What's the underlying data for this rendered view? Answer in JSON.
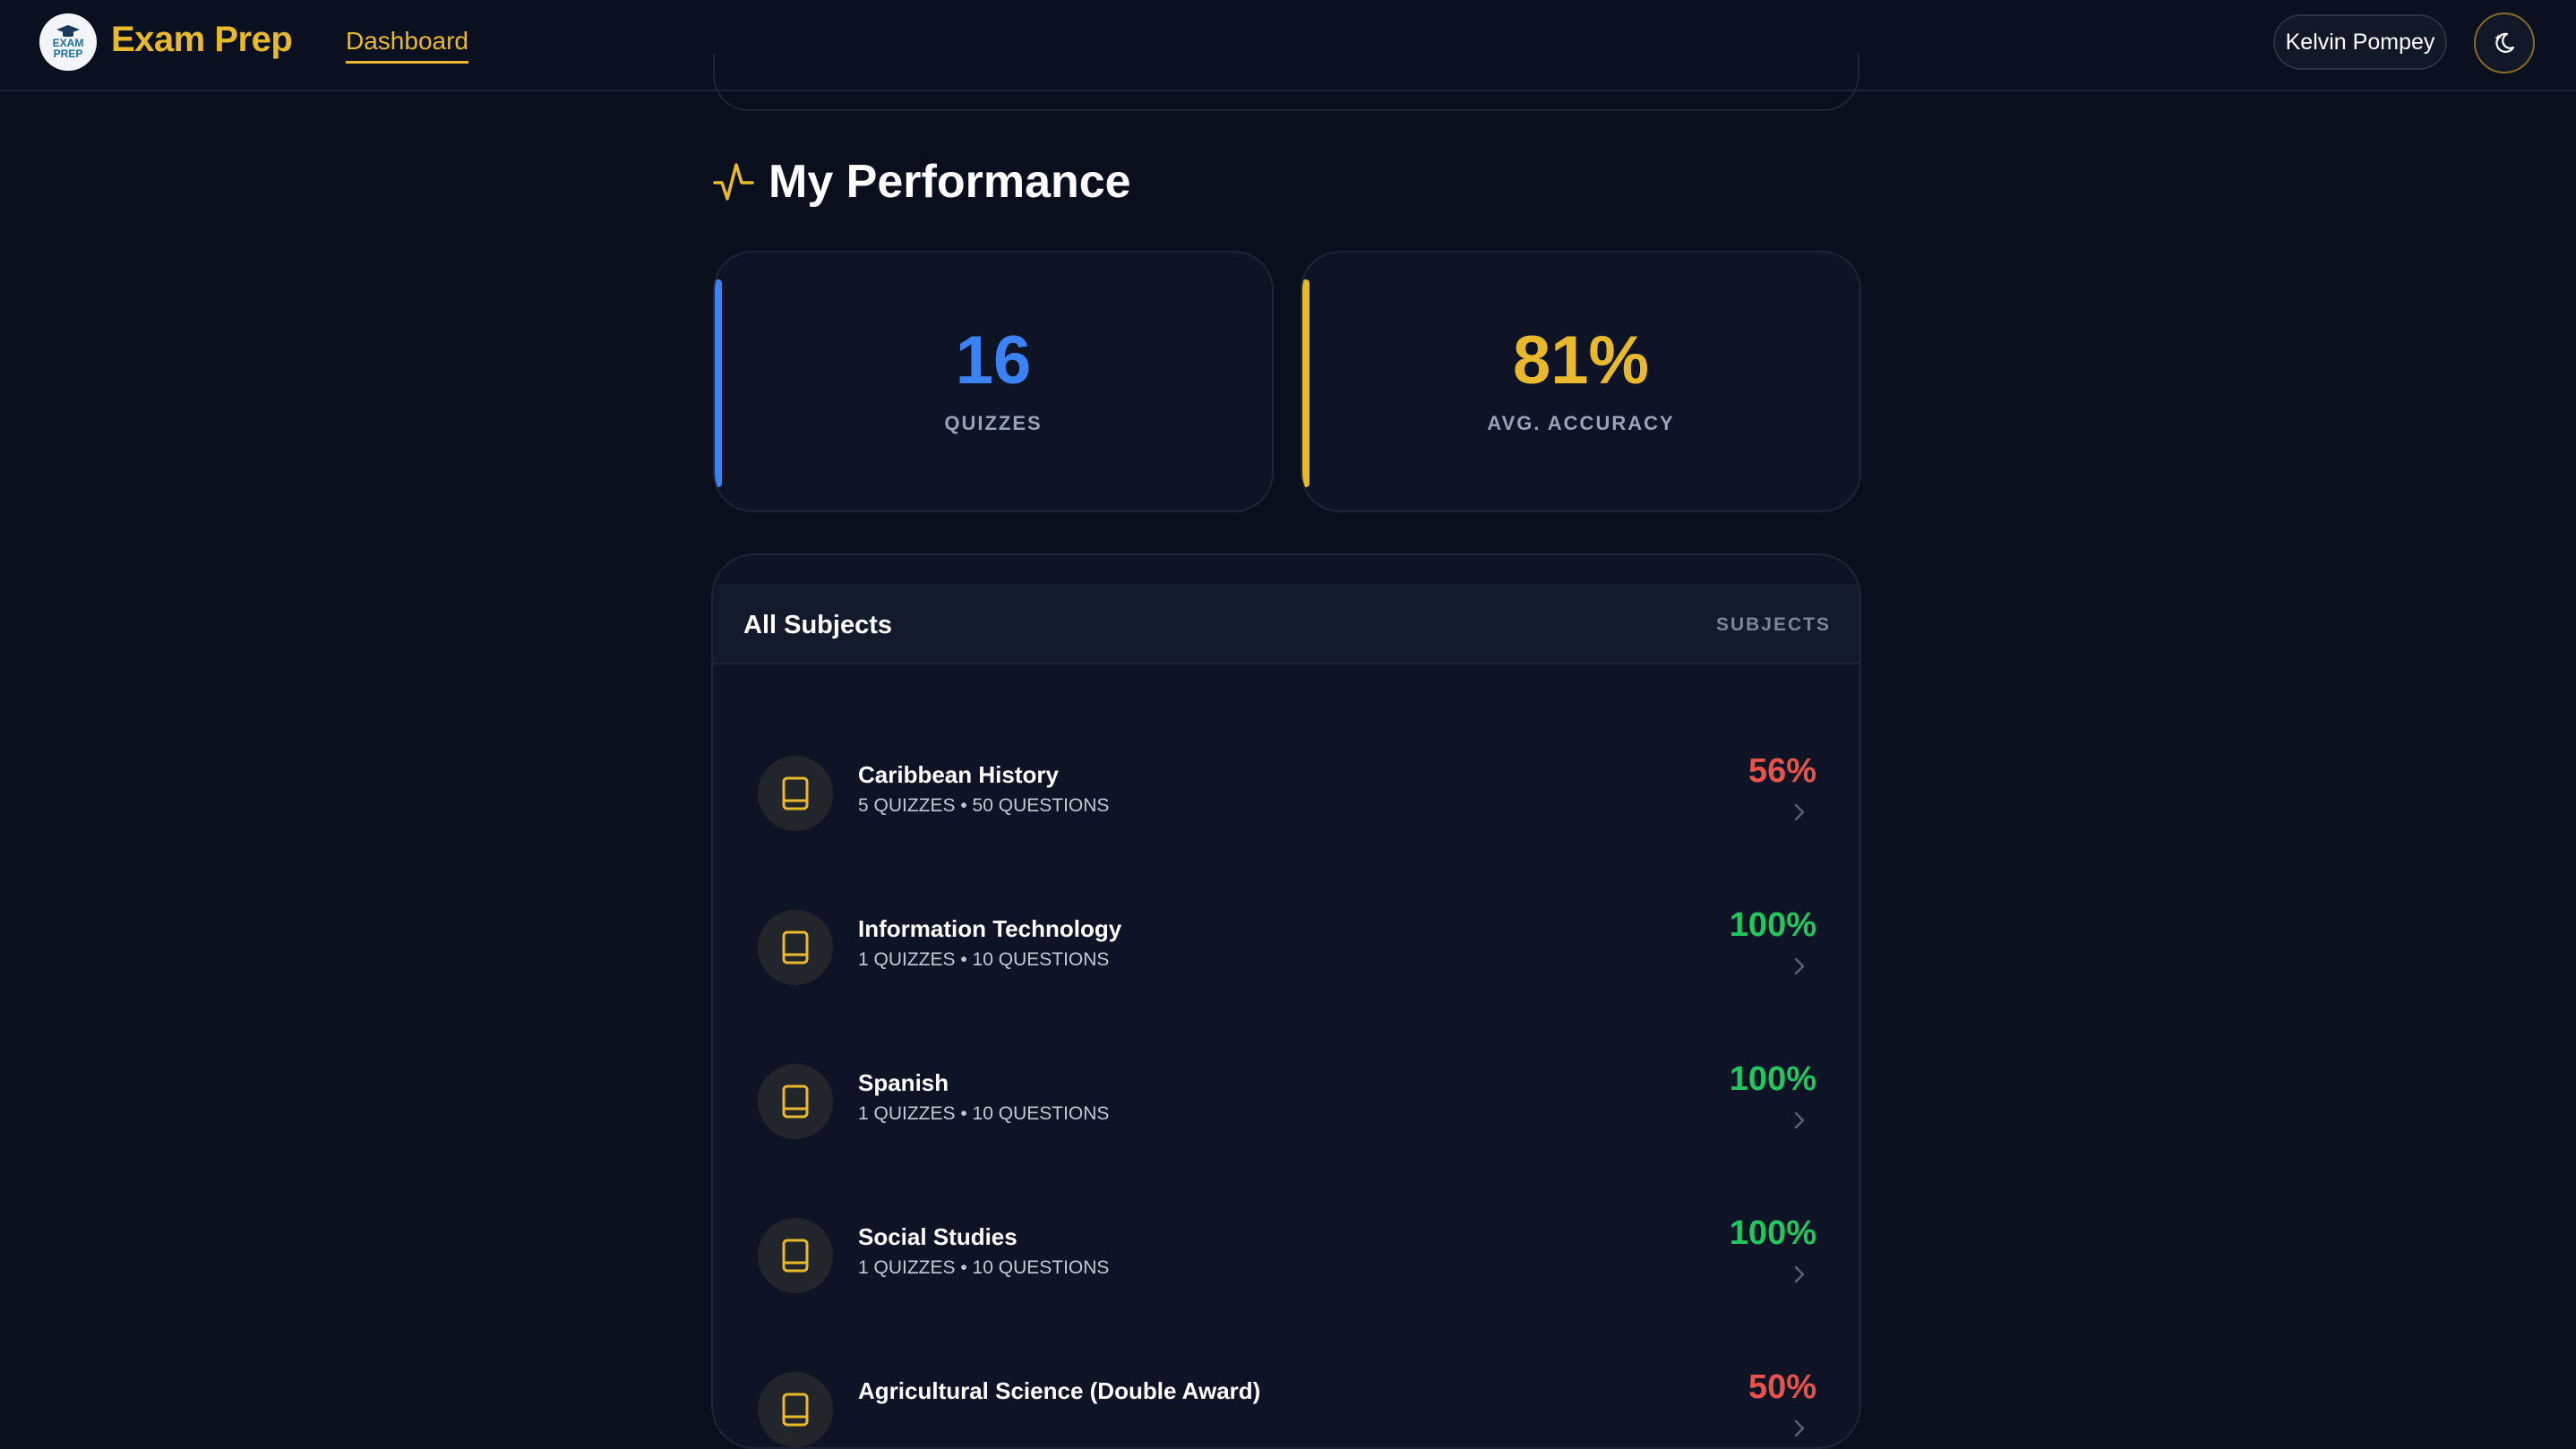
{
  "header": {
    "logo_text_line1": "EXAM",
    "logo_text_line2": "PREP",
    "brand": "Exam Prep",
    "nav_dashboard": "Dashboard",
    "user_name": "Kelvin Pompey",
    "theme_icon": "moon-sparkle-icon"
  },
  "performance": {
    "title": "My Performance",
    "icon": "activity-icon",
    "stats": [
      {
        "value": "16",
        "label": "QUIZZES",
        "color": "#3b82f6"
      },
      {
        "value": "81%",
        "label": "AVG. ACCURACY",
        "color": "#e8b92b"
      }
    ]
  },
  "subjects": {
    "title": "All Subjects",
    "tag": "SUBJECTS",
    "items": [
      {
        "name": "Caribbean History",
        "meta": "5 QUIZZES • 50 QUESTIONS",
        "score": "56%",
        "score_color": "#e5534b"
      },
      {
        "name": "Information Technology",
        "meta": "1 QUIZZES • 10 QUESTIONS",
        "score": "100%",
        "score_color": "#22c55e"
      },
      {
        "name": "Spanish",
        "meta": "1 QUIZZES • 10 QUESTIONS",
        "score": "100%",
        "score_color": "#22c55e"
      },
      {
        "name": "Social Studies",
        "meta": "1 QUIZZES • 10 QUESTIONS",
        "score": "100%",
        "score_color": "#22c55e"
      },
      {
        "name": "Agricultural Science (Double Award)",
        "meta": "",
        "score": "50%",
        "score_color": "#e5534b"
      }
    ]
  },
  "colors": {
    "accent_gold": "#e8b92b",
    "accent_blue": "#3b82f6",
    "background": "#0a0f1e"
  }
}
